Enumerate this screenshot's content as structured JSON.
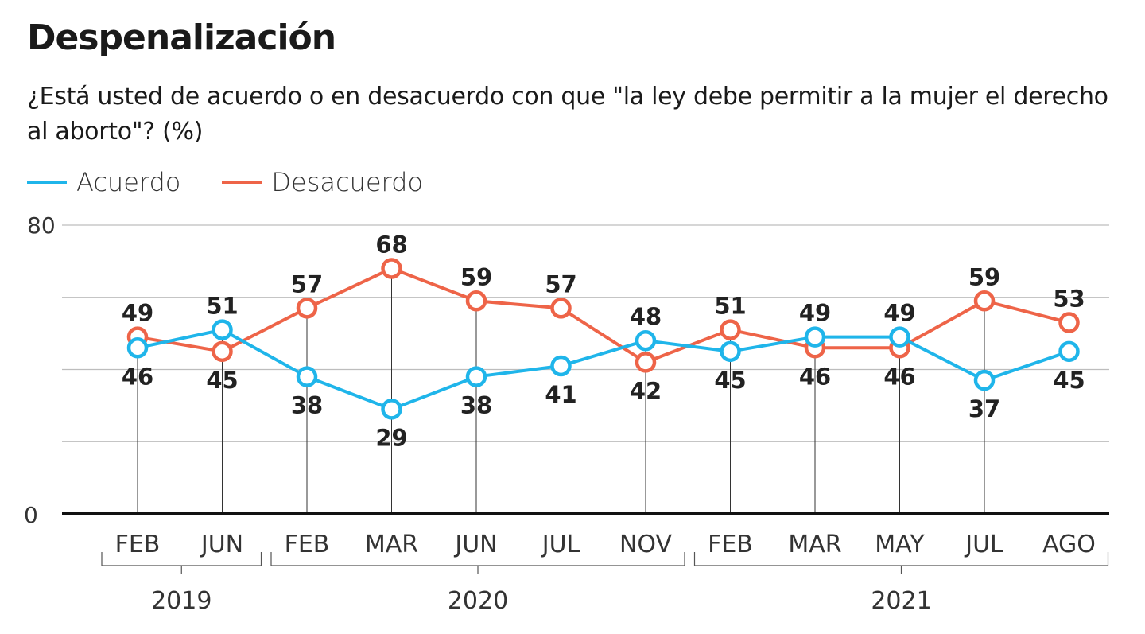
{
  "title": "Despenalización",
  "subtitle": "¿Está usted de acuerdo o en desacuerdo con que \"la ley debe permitir a la mujer el derecho al aborto\"? (%)",
  "colors": {
    "acuerdo": "#1fb5ea",
    "desacuerdo": "#ee6448",
    "axis": "#111111",
    "grid": "#bdbdbd"
  },
  "chart_data": {
    "type": "line",
    "categories": [
      "FEB",
      "JUN",
      "FEB",
      "MAR",
      "JUN",
      "JUL",
      "NOV",
      "FEB",
      "MAR",
      "MAY",
      "JUL",
      "AGO"
    ],
    "year_groups": [
      {
        "label": "2019",
        "start": 0,
        "end": 1
      },
      {
        "label": "2020",
        "start": 2,
        "end": 6
      },
      {
        "label": "2021",
        "start": 7,
        "end": 11
      }
    ],
    "series": [
      {
        "name": "Acuerdo",
        "values": [
          46,
          51,
          38,
          29,
          38,
          41,
          48,
          45,
          49,
          49,
          37,
          45
        ]
      },
      {
        "name": "Desacuerdo",
        "values": [
          49,
          45,
          57,
          68,
          59,
          57,
          42,
          51,
          46,
          46,
          59,
          53
        ]
      }
    ],
    "ylim": [
      0,
      80
    ],
    "yticks": [
      "0",
      "80"
    ],
    "grid": true,
    "legend": "top-left"
  }
}
